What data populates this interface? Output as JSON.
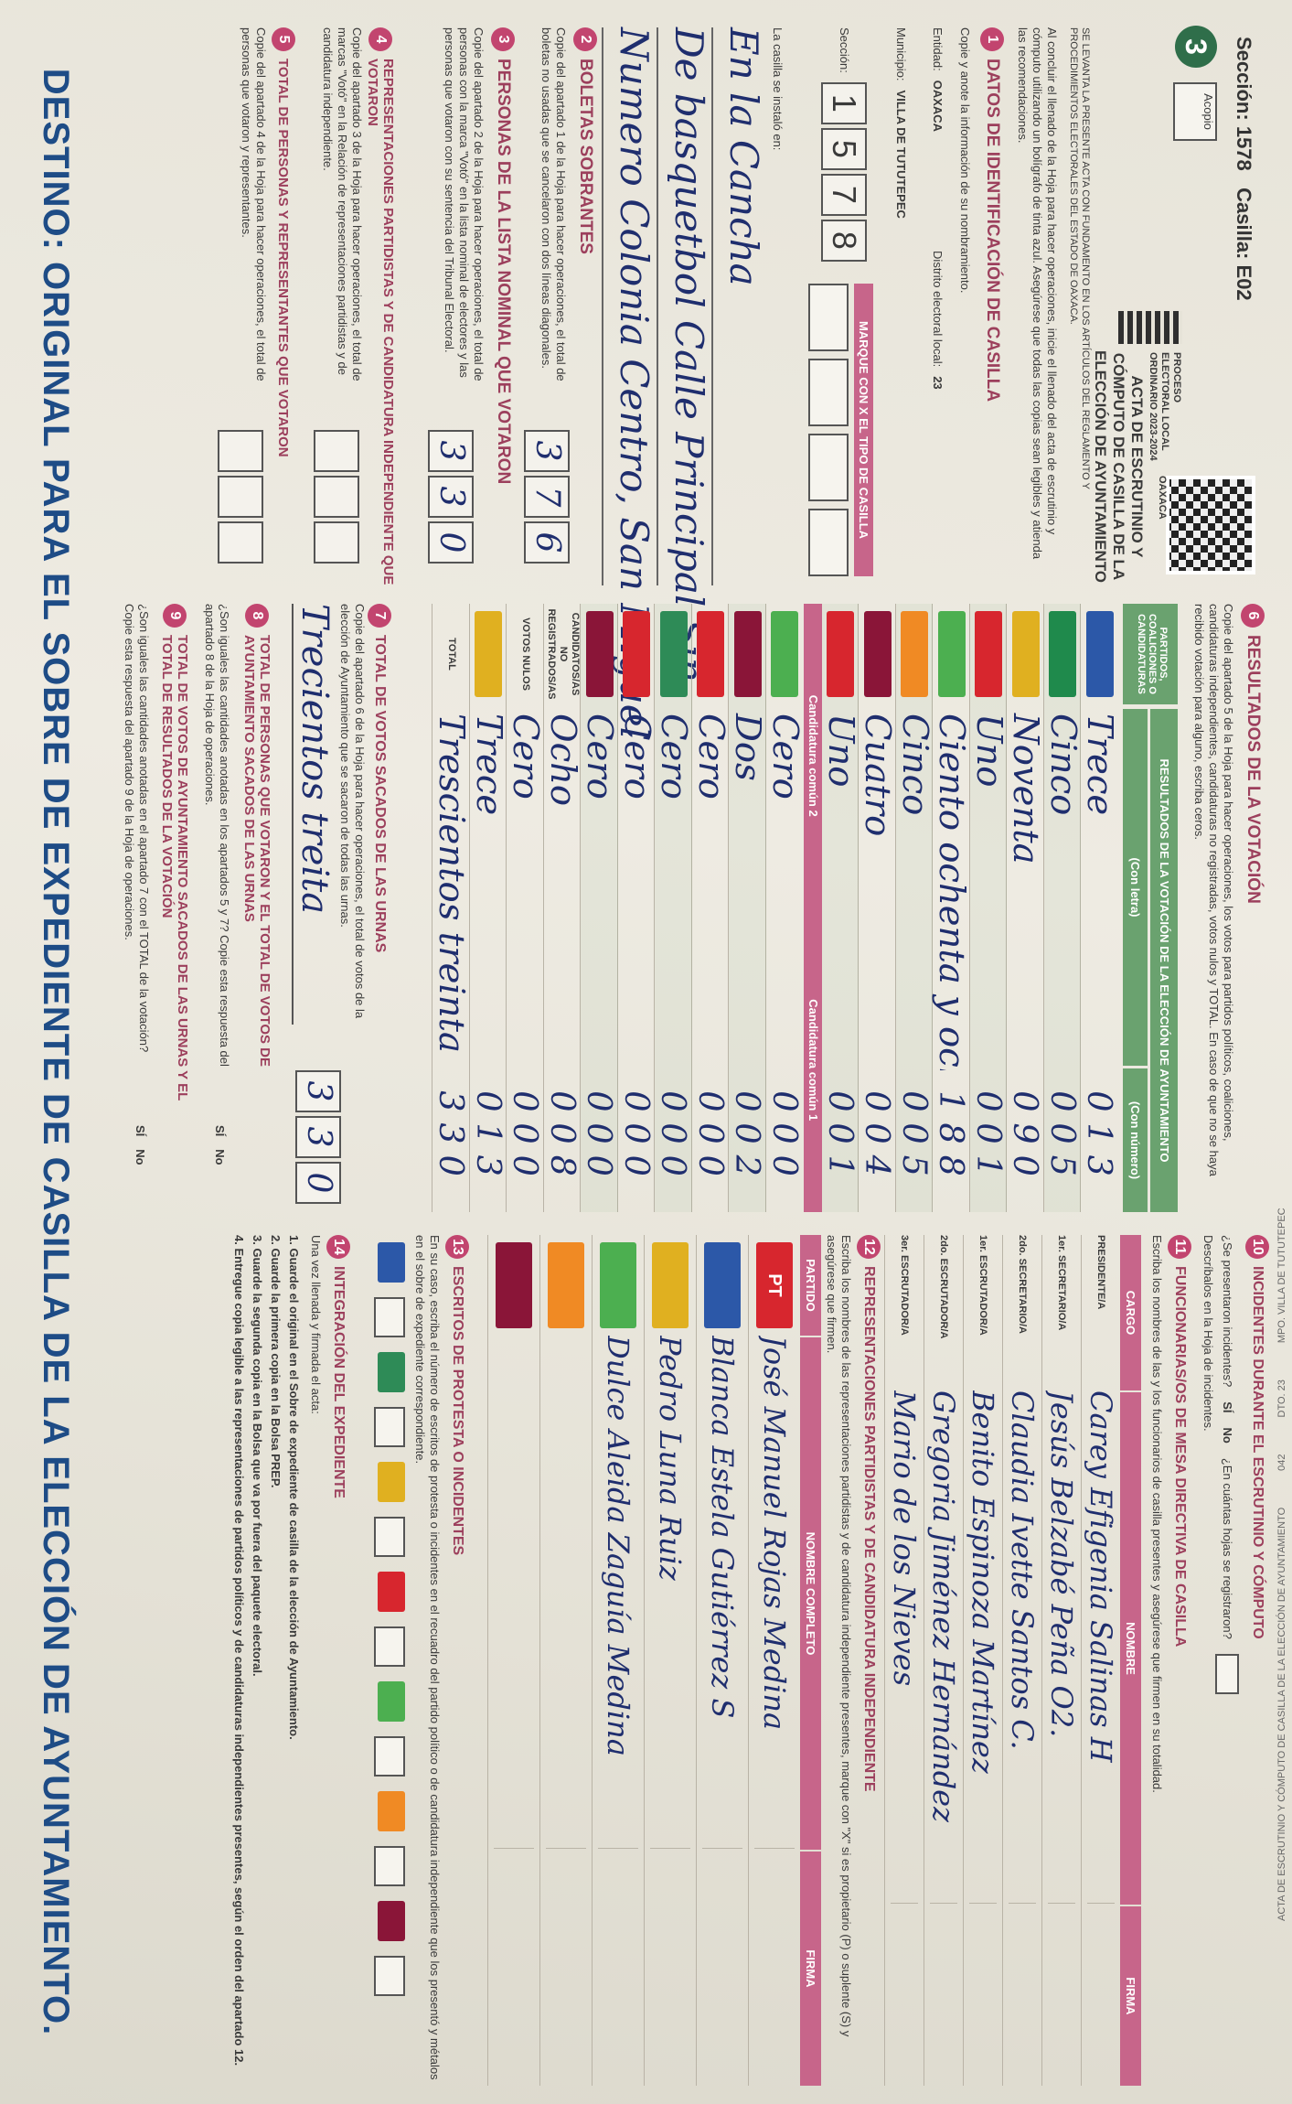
{
  "stub": {
    "title": "ACTA DE ESCRUTINIO Y CÓMPUTO DE CASILLA DE LA ELECCIÓN DE AYUNTAMIENTO",
    "code": "042",
    "district": "DTO. 23",
    "municipality": "MPO. VILLA DE TUTUTEPEC"
  },
  "header": {
    "seccion_label": "Sección:",
    "seccion": "1578",
    "casilla_label": "Casilla:",
    "casilla": "E02",
    "copy_number": "3",
    "acopio": "Acopio",
    "entity": "OAXACA",
    "process": "PROCESO ELECTORAL LOCAL ORDINARIO 2023-2024",
    "title": "ACTA DE ESCRUTINIO Y CÓMPUTO DE CASILLA DE LA ELECCIÓN DE AYUNTAMIENTO",
    "intro": "SE LEVANTA LA PRESENTE ACTA CON FUNDAMENTO EN LOS ARTÍCULOS DEL REGLAMENTO Y PROCEDIMIENTOS ELECTORALES DEL ESTADO DE OAXACA.",
    "instruction": "Al concluir el llenado de la Hoja para hacer operaciones, inicie el llenado del acta de escrutinio y cómputo utilizando un bolígrafo de tinta azul. Asegúrese que todas las copias sean legibles y atienda las recomendaciones."
  },
  "identification": {
    "number": "1",
    "title": "DATOS DE IDENTIFICACIÓN DE CASILLA",
    "instruction": "Copie y anote la información de su nombramiento.",
    "entidad_label": "Entidad:",
    "entidad": "OAXACA",
    "distrito_label": "Distrito electoral local:",
    "distrito": "23",
    "municipio_label": "Municipio:",
    "municipio": "VILLA DE TUTUTEPEC",
    "seccion_label": "Sección:",
    "seccion_digits": [
      "1",
      "5",
      "7",
      "8"
    ],
    "tipo_label": "MARQUE CON X EL TIPO DE CASILLA",
    "address_label": "La casilla se instaló en:",
    "address_lines": [
      "En la Cancha",
      "De basquetbol Calle Principal Sin",
      "Numero Colonia Centro, San Miguel"
    ]
  },
  "leftover_ballots": {
    "number": "2",
    "title": "BOLETAS SOBRANTES",
    "instruction": "Copie del apartado 1 de la Hoja para hacer operaciones, el total de boletas no usadas que se cancelaron con dos líneas diagonales.",
    "digits": [
      "3",
      "7",
      "6"
    ]
  },
  "voters": {
    "number": "3",
    "title": "PERSONAS DE LA LISTA NOMINAL QUE VOTARON",
    "instruction": "Copie del apartado 2 de la Hoja para hacer operaciones, el total de personas con la marca \"Votó\" en la lista nominal de electores y las personas que votaron con su sentencia del Tribunal Electoral.",
    "digits": [
      "3",
      "3",
      "0"
    ]
  },
  "representatives_voted": {
    "number": "4",
    "title": "REPRESENTACIONES PARTIDISTAS Y DE CANDIDATURA INDEPENDIENTE QUE VOTARON",
    "instruction": "Copie del apartado 3 de la Hoja para hacer operaciones, el total de marcas \"Votó\" en la Relación de representaciones partidistas y de candidatura independiente."
  },
  "total_voters": {
    "number": "5",
    "title": "TOTAL DE PERSONAS Y REPRESENTANTES QUE VOTARON",
    "instruction": "Copie del apartado 4 de la Hoja para hacer operaciones, el total de personas que votaron y representantes."
  },
  "results": {
    "number": "6",
    "title": "RESULTADOS DE LA VOTACIÓN",
    "instruction": "Copie del apartado 5 de la Hoja para hacer operaciones, los votos para partidos políticos, coaliciones, candidaturas independientes, candidaturas no registradas, votos nulos y TOTAL. En caso de que no se haya recibido votación para alguno, escriba ceros.",
    "col_party": "PARTIDOS, COALICIONES O CANDIDATURAS",
    "col_results": "RESULTADOS DE LA VOTACIÓN DE LA ELECCIÓN DE AYUNTAMIENTO",
    "col_letter": "(Con letra)",
    "col_number": "(Con número)",
    "band_1": "Candidatura común 2",
    "band_2": "Candidatura común 1",
    "rows": [
      {
        "word": "Trece",
        "number": "013"
      },
      {
        "word": "Cinco",
        "number": "005"
      },
      {
        "word": "Noventa",
        "number": "090"
      },
      {
        "word": "Uno",
        "number": "001"
      },
      {
        "word": "Ciento ochenta y ocho",
        "number": "188"
      },
      {
        "word": "Cinco",
        "number": "005"
      },
      {
        "word": "Cuatro",
        "number": "004"
      },
      {
        "word": "Uno",
        "number": "001"
      },
      {
        "word": "Cero",
        "number": "000"
      },
      {
        "word": "Dos",
        "number": "002"
      },
      {
        "word": "Cero",
        "number": "000"
      },
      {
        "word": "Cero",
        "number": "000"
      },
      {
        "word": "Cero",
        "number": "000"
      },
      {
        "word": "Cero",
        "number": "000"
      },
      {
        "label": "CANDIDATOS/AS NO REGISTRADOS/AS",
        "word": "Ocho",
        "number": "008"
      },
      {
        "label": "VOTOS NULOS",
        "word": "Cero",
        "number": "000"
      },
      {
        "word": "Trece",
        "number": "013"
      },
      {
        "label": "TOTAL",
        "word": "Trescientos treinta",
        "number": "330"
      }
    ]
  },
  "ballots_out": {
    "number": "7",
    "title": "TOTAL DE VOTOS SACADOS DE LAS URNAS",
    "instruction": "Copie del apartado 6 de la Hoja para hacer operaciones, el total de votos de la elección de Ayuntamiento que se sacaron de todas las urnas.",
    "word": "Trecientos treita",
    "digits": [
      "3",
      "3",
      "0"
    ]
  },
  "comparison_1": {
    "number": "8",
    "title": "TOTAL DE PERSONAS QUE VOTARON Y EL TOTAL DE VOTOS DE AYUNTAMIENTO SACADOS DE LAS URNAS",
    "question": "¿Son iguales las cantidades anotadas en los apartados 5 y 7? Copie esta respuesta del apartado 8 de la Hoja de operaciones.",
    "yes": "SÍ",
    "no": "No"
  },
  "comparison_2": {
    "number": "9",
    "title": "TOTAL DE VOTOS DE AYUNTAMIENTO SACADOS DE LAS URNAS Y EL TOTAL DE RESULTADOS DE LA VOTACIÓN",
    "question": "¿Son iguales las cantidades anotadas en el apartado 7 con el TOTAL de la votación? Copie esta respuesta del apartado 9 de la Hoja de operaciones.",
    "yes": "SÍ",
    "no": "No"
  },
  "incidents": {
    "number": "10",
    "title": "INCIDENTES DURANTE EL ESCRUTINIO Y CÓMPUTO",
    "question": "¿Se presentaron incidentes?",
    "yes": "SÍ",
    "no": "No",
    "sheets": "¿En cuántas hojas se registraron?",
    "describe": "Descríbalos en la Hoja de incidentes."
  },
  "officials": {
    "number": "11",
    "title": "FUNCIONARIAS/OS DE MESA DIRECTIVA DE CASILLA",
    "instruction": "Escriba los nombres de las y los funcionarios de casilla presentes y asegúrese que firmen en su totalidad.",
    "col_role": "CARGO",
    "col_name": "NOMBRE",
    "col_signature": "FIRMA",
    "rows": [
      {
        "role": "PRESIDENTE/A",
        "name": "Carey Efigenia Salinas H"
      },
      {
        "role": "1er. SECRETARIO/A",
        "name": "Jesús Belzabé Peña O2."
      },
      {
        "role": "2do. SECRETARIO/A",
        "name": "Claudia Ivette Santos C."
      },
      {
        "role": "1er. ESCRUTADOR/A",
        "name": "Benito Espinoza Martínez"
      },
      {
        "role": "2do. ESCRUTADOR/A",
        "name": "Gregoria Jiménez Hernández"
      },
      {
        "role": "3er. ESCRUTADOR/A",
        "name": "Mario de los Nieves"
      }
    ]
  },
  "party_reps": {
    "number": "12",
    "title": "REPRESENTACIONES PARTIDISTAS Y DE CANDIDATURA INDEPENDIENTE",
    "instruction": "Escriba los nombres de las representaciones partidistas y de candidatura independiente presentes, marque con \"X\" si es propietario (P) o suplente (S) y asegúrese que firmen.",
    "col_party": "PARTIDO",
    "col_name": "NOMBRE COMPLETO",
    "col_signature": "FIRMA",
    "rows": [
      {
        "party": "PT",
        "name": "José Manuel Rojas Medina"
      },
      {
        "name": "Blanca Estela Gutiérrez S"
      },
      {
        "name": "Pedro Luna Ruiz"
      },
      {
        "name": "Dulce Aleida Zaguía Medina"
      },
      {
        "name": ""
      },
      {
        "name": ""
      }
    ]
  },
  "protests": {
    "number": "13",
    "title": "ESCRITOS DE PROTESTA O INCIDENTES",
    "instruction": "En su caso, escriba el número de escritos de protesta o incidentes en el recuadro del partido político o de candidatura independiente que los presentó y métalos en el sobre de expediente correspondiente."
  },
  "file": {
    "number": "14",
    "title": "INTEGRACIÓN DEL EXPEDIENTE",
    "intro": "Una vez llenada y firmada el acta:",
    "steps": [
      "1. Guarde el original en el Sobre de expediente de casilla de la elección de Ayuntamiento.",
      "2. Guarde la primera copia en la Bolsa PREP.",
      "3. Guarde la segunda copia en la Bolsa que va por fuera del paquete electoral.",
      "4. Entregue copia legible a las representaciones de partidos políticos y de candidaturas independientes presentes, según el orden del apartado 12."
    ]
  },
  "footer": "DESTINO: ORIGINAL PARA EL SOBRE DE EXPEDIENTE DE CASILLA DE LA ELECCIÓN DE AYUNTAMIENTO."
}
